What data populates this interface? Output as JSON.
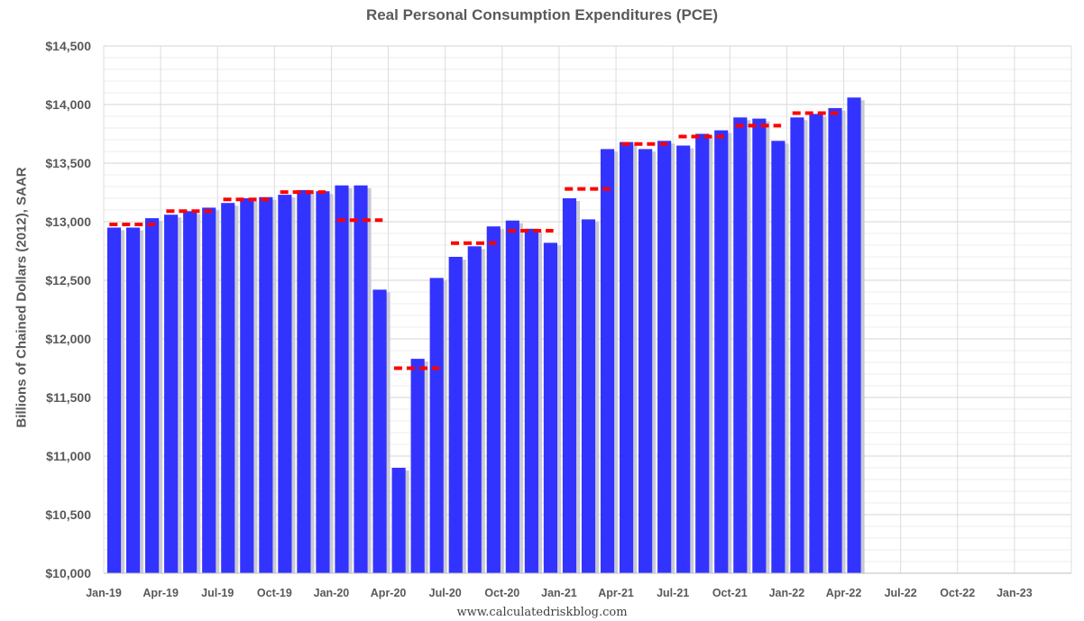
{
  "chart_data": {
    "type": "bar",
    "title": "Real Personal Consumption Expenditures (PCE)",
    "ylabel": "Billions of Chained Dollars (2012), SAAR",
    "xlabel": "",
    "source": "www.calculatedriskblog.com",
    "ylim": [
      10000,
      14500
    ],
    "y_ticks": [
      10000,
      10500,
      11000,
      11500,
      12000,
      12500,
      13000,
      13500,
      14000,
      14500
    ],
    "y_tick_labels": [
      "$10,000",
      "$10,500",
      "$11,000",
      "$11,500",
      "$12,000",
      "$12,500",
      "$13,000",
      "$13,500",
      "$14,000",
      "$14,500"
    ],
    "x_tick_labels": [
      "Jan-19",
      "Apr-19",
      "Jul-19",
      "Oct-19",
      "Jan-20",
      "Apr-20",
      "Jul-20",
      "Oct-20",
      "Jan-21",
      "Apr-21",
      "Jul-21",
      "Oct-21",
      "Jan-22",
      "Apr-22",
      "Jul-22",
      "Oct-22",
      "Jan-23"
    ],
    "x_range": [
      "Jan-19",
      "Mar-23"
    ],
    "grid": true,
    "legend": "none",
    "colors": {
      "bars": "#3333ff",
      "bar_shadow": "#c9c9d6",
      "quarterly_avg": "#ff0000"
    },
    "series": [
      {
        "type": "bar",
        "categories": [
          "Jan-19",
          "Feb-19",
          "Mar-19",
          "Apr-19",
          "May-19",
          "Jun-19",
          "Jul-19",
          "Aug-19",
          "Sep-19",
          "Oct-19",
          "Nov-19",
          "Dec-19",
          "Jan-20",
          "Feb-20",
          "Mar-20",
          "Apr-20",
          "May-20",
          "Jun-20",
          "Jul-20",
          "Aug-20",
          "Sep-20",
          "Oct-20",
          "Nov-20",
          "Dec-20",
          "Jan-21",
          "Feb-21",
          "Mar-21",
          "Apr-21",
          "May-21",
          "Jun-21",
          "Jul-21",
          "Aug-21",
          "Sep-21",
          "Oct-21",
          "Nov-21",
          "Dec-21",
          "Jan-22",
          "Feb-22",
          "Mar-22",
          "Apr-22"
        ],
        "values": [
          12950,
          12950,
          13030,
          13060,
          13090,
          13120,
          13160,
          13200,
          13210,
          13230,
          13270,
          13260,
          13310,
          13310,
          12420,
          10900,
          11830,
          12520,
          12700,
          12790,
          12960,
          13010,
          12940,
          12820,
          13200,
          13020,
          13620,
          13680,
          13620,
          13690,
          13650,
          13750,
          13780,
          13890,
          13880,
          13690,
          13890,
          13920,
          13970,
          14060
        ]
      },
      {
        "type": "line",
        "style": "dashed",
        "quarters": [
          "2019Q1",
          "2019Q2",
          "2019Q3",
          "2019Q4",
          "2020Q1",
          "2020Q2",
          "2020Q3",
          "2020Q4",
          "2021Q1",
          "2021Q2",
          "2021Q3",
          "2021Q4",
          "2022Q1"
        ],
        "values": [
          12977,
          13090,
          13190,
          13253,
          13013,
          11750,
          12817,
          12923,
          13280,
          13663,
          13727,
          13820,
          13927
        ]
      }
    ]
  }
}
